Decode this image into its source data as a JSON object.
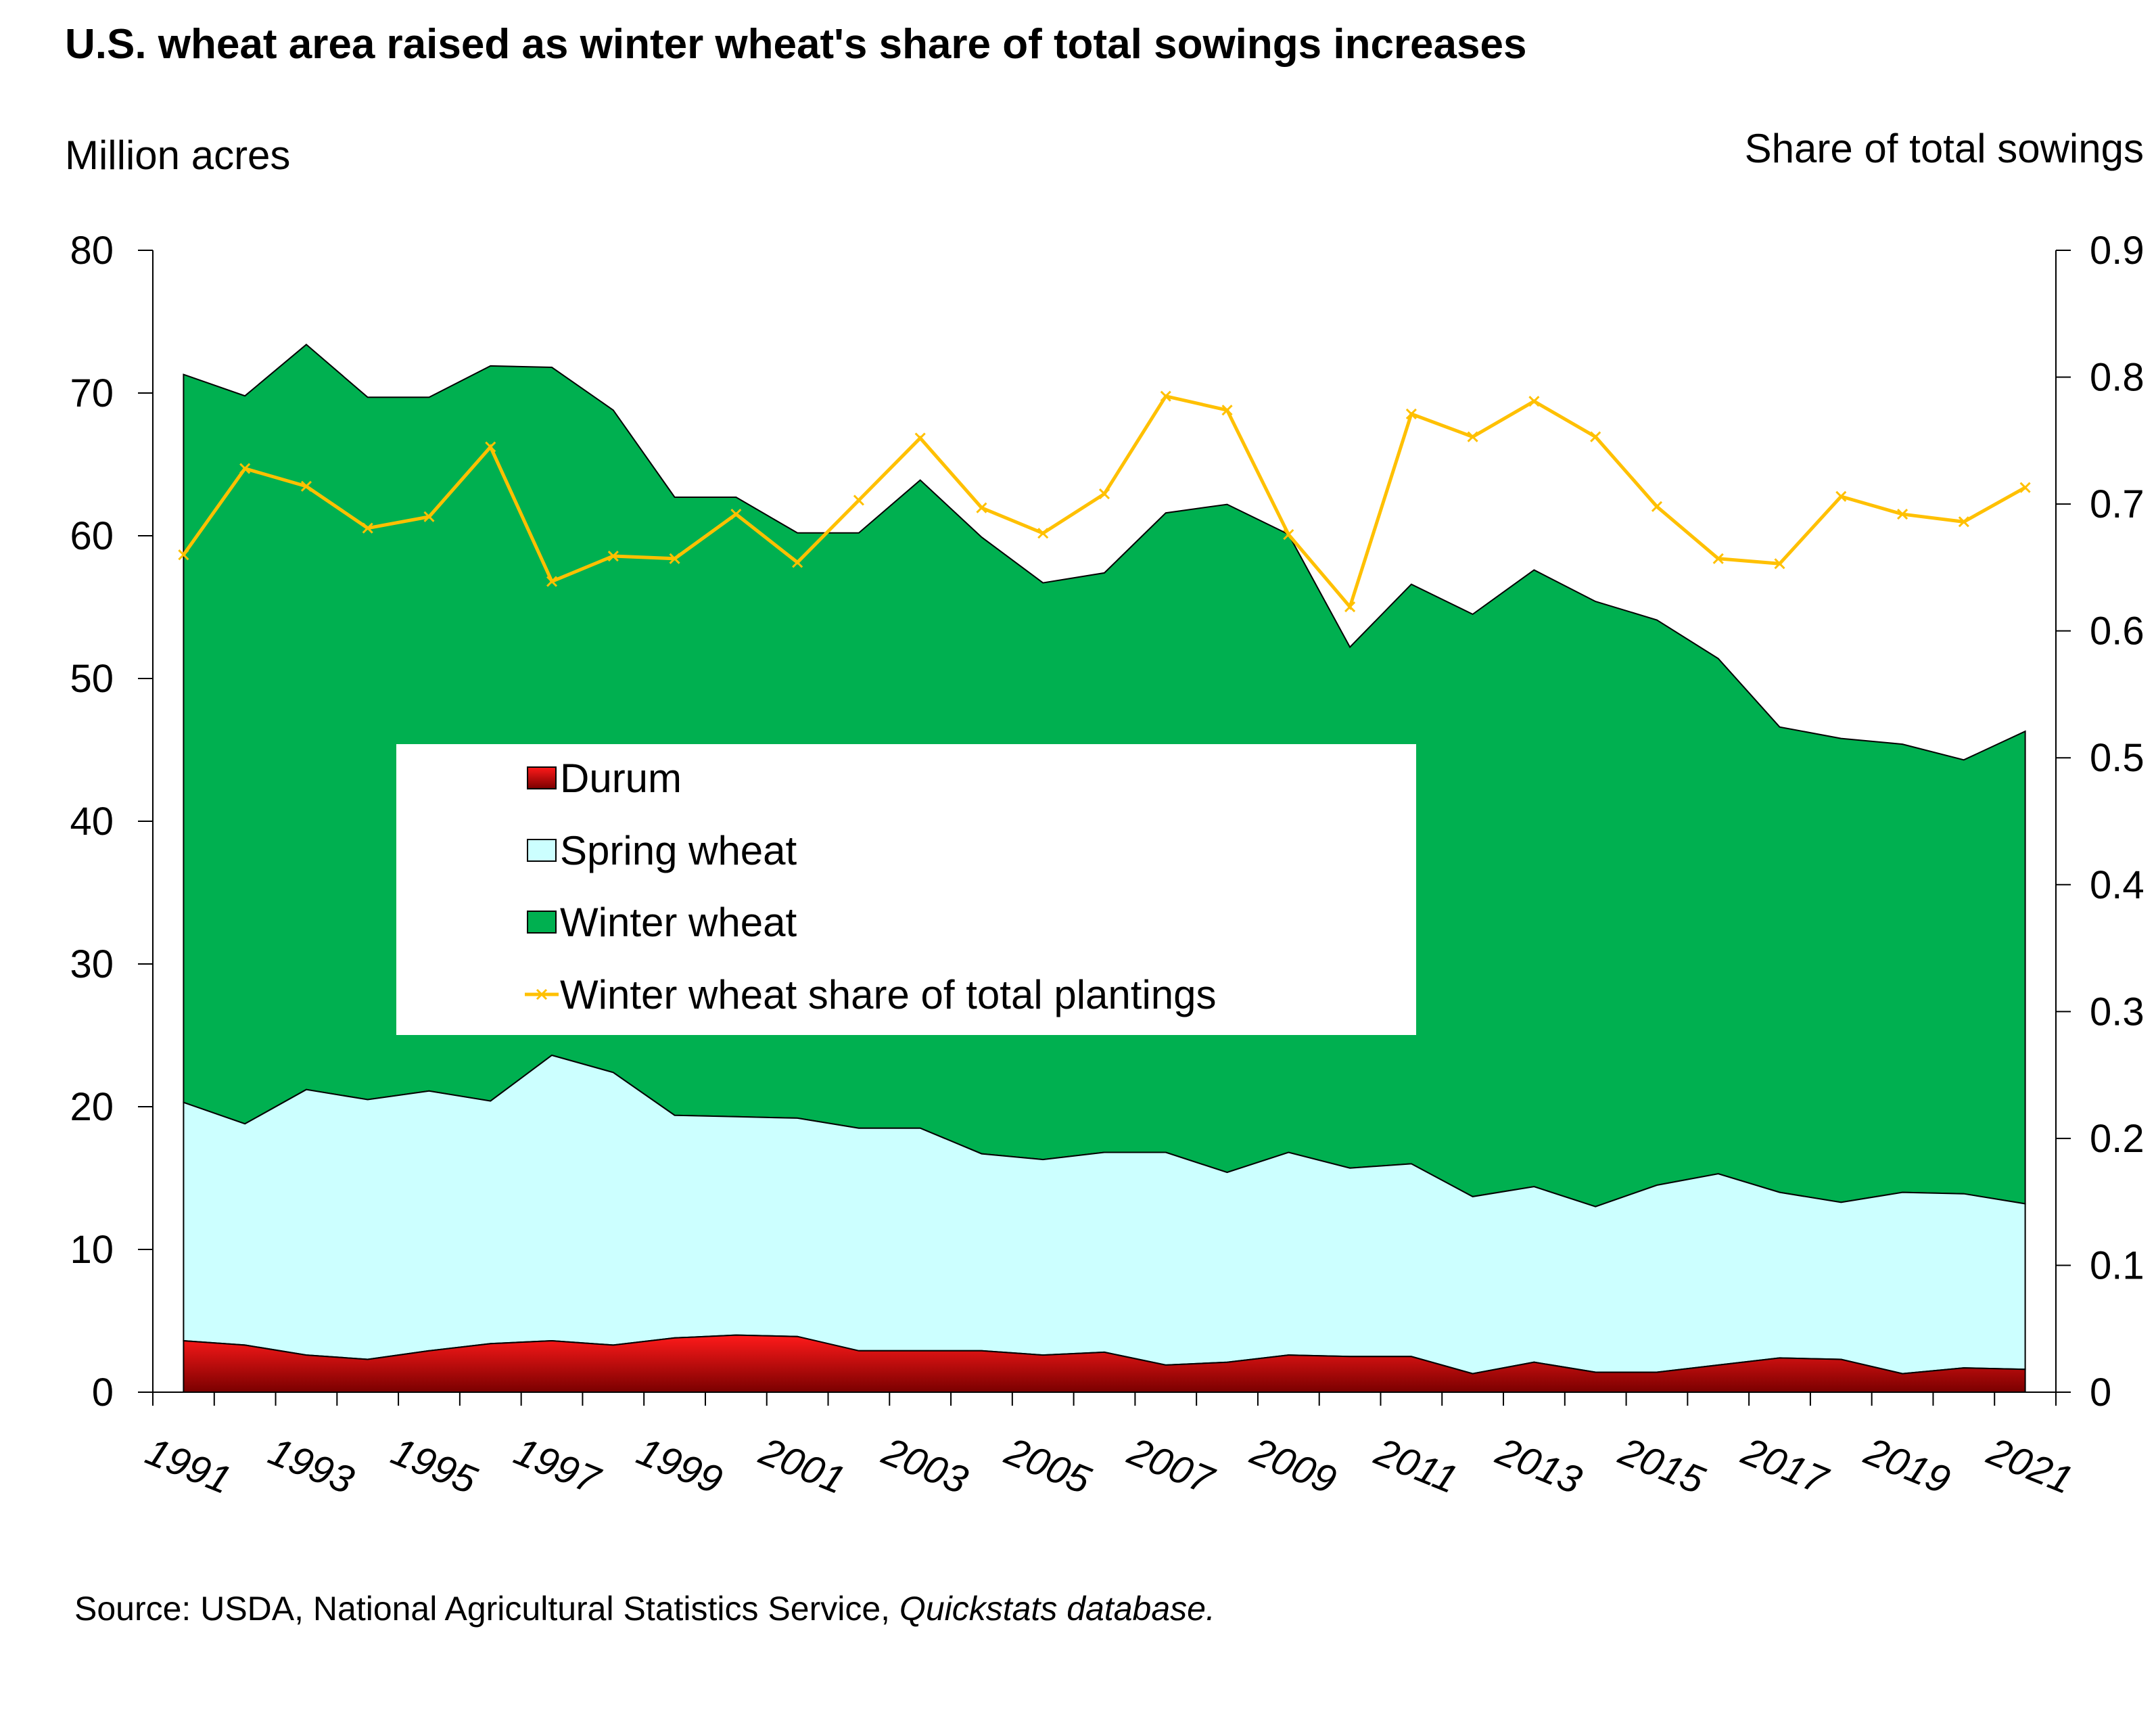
{
  "chart_data": {
    "type": "area",
    "title": "U.S. wheat area raised as winter wheat's share of total sowings increases",
    "ylabel_left": "Million acres",
    "ylabel_right": "Share of total sowings",
    "ylim_left": [
      0,
      80
    ],
    "ylim_right": [
      0,
      0.9
    ],
    "yticks_left": [
      "0",
      "10",
      "20",
      "30",
      "40",
      "50",
      "60",
      "70",
      "80"
    ],
    "yticks_right": [
      "0",
      "0.1",
      "0.2",
      "0.3",
      "0.4",
      "0.5",
      "0.6",
      "0.7",
      "0.8",
      "0.9"
    ],
    "x": [
      1991,
      1992,
      1993,
      1994,
      1995,
      1996,
      1997,
      1998,
      1999,
      2000,
      2001,
      2002,
      2003,
      2004,
      2005,
      2006,
      2007,
      2008,
      2009,
      2010,
      2011,
      2012,
      2013,
      2014,
      2015,
      2016,
      2017,
      2018,
      2019,
      2020,
      2021
    ],
    "xtick_labels": [
      "1991",
      "1993",
      "1995",
      "1997",
      "1999",
      "2001",
      "2003",
      "2005",
      "2007",
      "2009",
      "2011",
      "2013",
      "2015",
      "2017",
      "2019",
      "2021"
    ],
    "series": [
      {
        "name": "Durum",
        "color": "#e8000b",
        "values": [
          3.6,
          3.3,
          2.6,
          2.3,
          2.9,
          3.4,
          3.6,
          3.3,
          3.8,
          4.0,
          3.9,
          2.9,
          2.9,
          2.9,
          2.6,
          2.8,
          1.9,
          2.1,
          2.6,
          2.5,
          2.5,
          1.3,
          2.1,
          1.4,
          1.4,
          1.9,
          2.4,
          2.3,
          1.3,
          1.7,
          1.6
        ]
      },
      {
        "name": "Spring wheat",
        "color": "#ccffff",
        "values": [
          16.7,
          15.5,
          18.6,
          18.2,
          18.2,
          17.0,
          20.0,
          19.1,
          15.6,
          15.3,
          15.3,
          15.6,
          15.6,
          13.8,
          13.7,
          14.0,
          14.9,
          13.3,
          14.2,
          13.2,
          13.5,
          12.4,
          12.3,
          11.6,
          13.1,
          13.4,
          11.6,
          11.0,
          12.7,
          12.2,
          11.6
        ]
      },
      {
        "name": "Winter wheat",
        "color": "#00b050",
        "values": [
          51.0,
          51.0,
          52.2,
          49.2,
          48.6,
          51.5,
          48.2,
          46.4,
          43.3,
          43.4,
          41.0,
          41.7,
          45.4,
          43.2,
          40.4,
          40.6,
          44.8,
          46.8,
          43.3,
          36.5,
          40.6,
          40.8,
          43.2,
          42.4,
          39.6,
          36.1,
          32.6,
          32.5,
          31.4,
          30.4,
          33.1
        ]
      },
      {
        "name": "Winter wheat share of total plantings",
        "color": "#ffc000",
        "values": [
          0.66,
          0.728,
          0.714,
          0.681,
          0.69,
          0.745,
          0.639,
          0.659,
          0.657,
          0.692,
          0.654,
          0.703,
          0.752,
          0.697,
          0.677,
          0.708,
          0.785,
          0.774,
          0.676,
          0.619,
          0.771,
          0.753,
          0.781,
          0.753,
          0.698,
          0.657,
          0.653,
          0.706,
          0.692,
          0.686,
          0.713
        ]
      }
    ],
    "legend": {
      "position": "center-left"
    },
    "source_label": "Source:  USDA, National Agricultural Statistics Service, ",
    "source_italic": "Quickstats database."
  }
}
